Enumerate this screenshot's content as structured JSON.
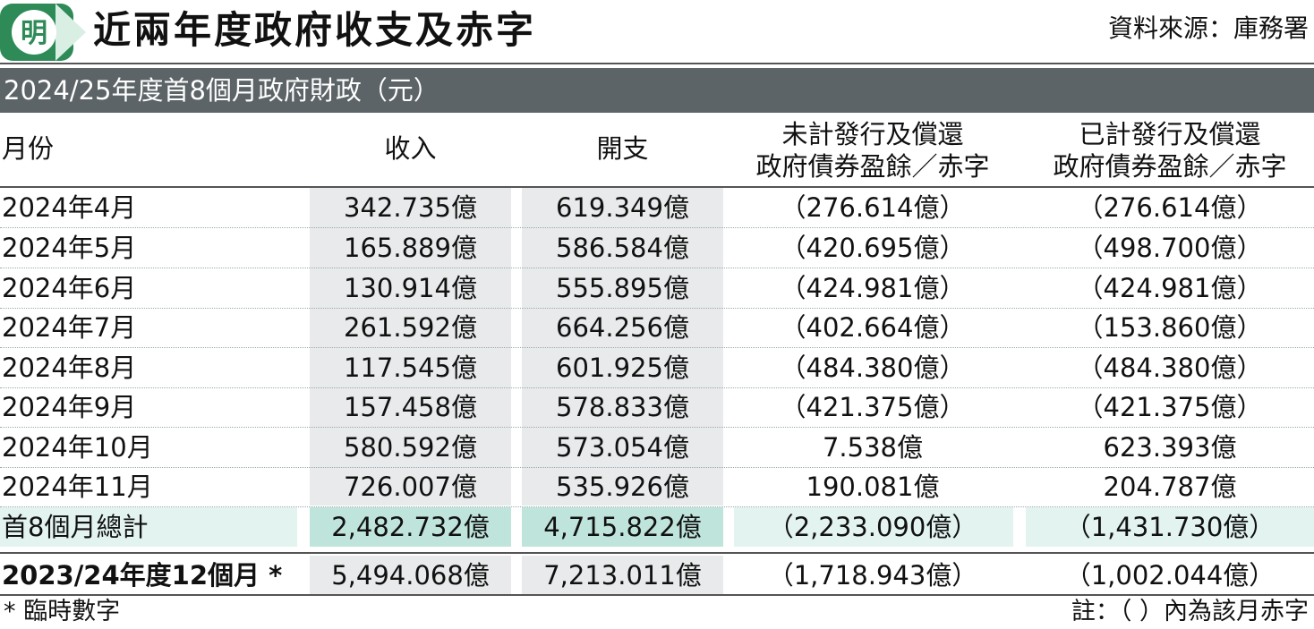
{
  "header": {
    "logo_char": "明",
    "title": "近兩年度政府收支及赤字",
    "source": "資料來源：庫務署"
  },
  "subtitle": "2024/25年度首8個月政府財政（元）",
  "table": {
    "headers": {
      "month": "月份",
      "revenue": "收入",
      "expenditure": "開支",
      "deficit_before_line1": "未計發行及償還",
      "deficit_before_line2": "政府債券盈餘／赤字",
      "deficit_after_line1": "已計發行及償還",
      "deficit_after_line2": "政府債券盈餘／赤字"
    },
    "rows": [
      {
        "month": "2024年4月",
        "revenue": "342.735億",
        "expenditure": "619.349億",
        "deficit_before": "（276.614億）",
        "deficit_after": "（276.614億）"
      },
      {
        "month": "2024年5月",
        "revenue": "165.889億",
        "expenditure": "586.584億",
        "deficit_before": "（420.695億）",
        "deficit_after": "（498.700億）"
      },
      {
        "month": "2024年6月",
        "revenue": "130.914億",
        "expenditure": "555.895億",
        "deficit_before": "（424.981億）",
        "deficit_after": "（424.981億）"
      },
      {
        "month": "2024年7月",
        "revenue": "261.592億",
        "expenditure": "664.256億",
        "deficit_before": "（402.664億）",
        "deficit_after": "（153.860億）"
      },
      {
        "month": "2024年8月",
        "revenue": "117.545億",
        "expenditure": "601.925億",
        "deficit_before": "（484.380億）",
        "deficit_after": "（484.380億）"
      },
      {
        "month": "2024年9月",
        "revenue": "157.458億",
        "expenditure": "578.833億",
        "deficit_before": "（421.375億）",
        "deficit_after": "（421.375億）"
      },
      {
        "month": "2024年10月",
        "revenue": "580.592億",
        "expenditure": "573.054億",
        "deficit_before": "7.538億",
        "deficit_after": "623.393億"
      },
      {
        "month": "2024年11月",
        "revenue": "726.007億",
        "expenditure": "535.926億",
        "deficit_before": "190.081億",
        "deficit_after": "204.787億"
      }
    ],
    "total": {
      "month": "首8個月總計",
      "revenue": "2,482.732億",
      "expenditure": "4,715.822億",
      "deficit_before": "（2,233.090億）",
      "deficit_after": "（1,431.730億）"
    },
    "previous": {
      "month": "2023/24年度12個月 *",
      "revenue": "5,494.068億",
      "expenditure": "7,213.011億",
      "deficit_before": "（1,718.943億）",
      "deficit_after": "（1,002.044億）"
    }
  },
  "footnotes": {
    "left": "* 臨時數字",
    "right": "註：（ ）內為該月赤字"
  },
  "colors": {
    "subtitle_bar": "#5c6467",
    "logo_green": "#2e8b57",
    "column_grey": "#e8eaeb",
    "total_row_teal": "#e2f3f0",
    "total_row_teal_dark": "#bfe4dc"
  }
}
